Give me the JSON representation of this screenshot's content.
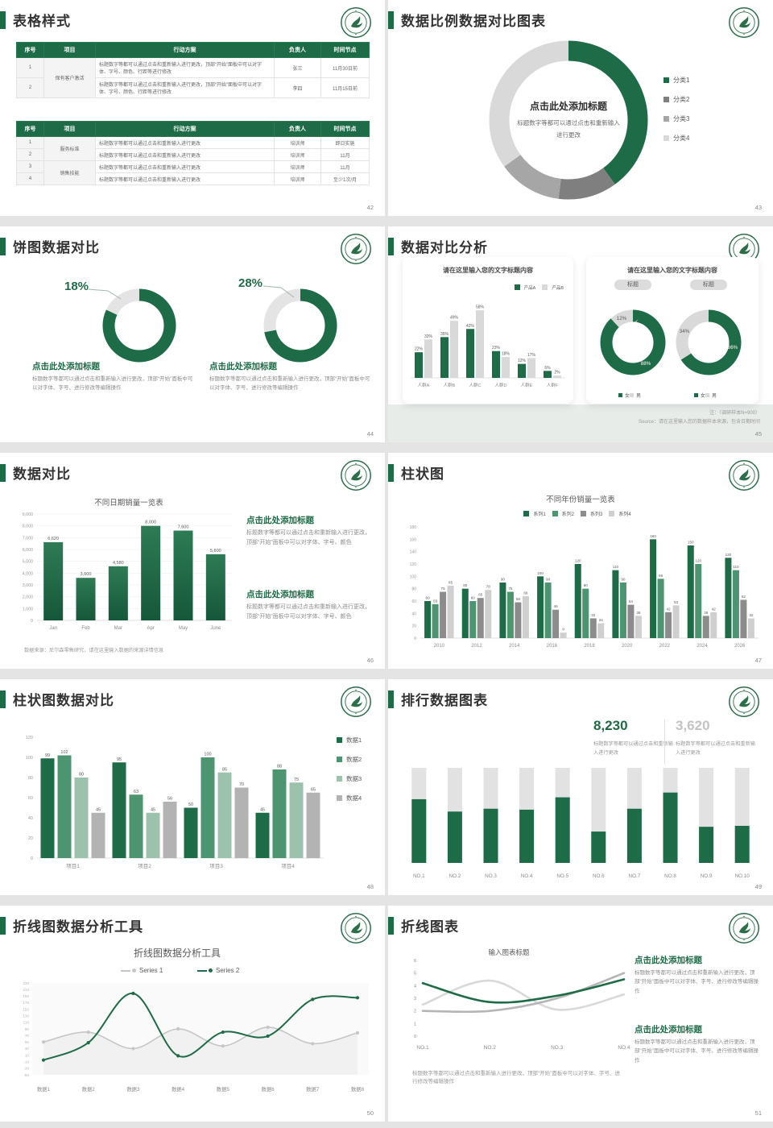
{
  "theme": {
    "green": "#1e6b47",
    "green2": "#4d9470",
    "green3": "#9cc2ae",
    "gray_dark": "#7f7f7f",
    "gray_mid": "#a6a6a6",
    "gray_light": "#d9d9d9",
    "track": "#e2e2e2"
  },
  "slides": [
    {
      "title": "表格样式",
      "page": "42",
      "table1": {
        "headers": [
          "序号",
          "项目",
          "行动方案",
          "负责人",
          "时间节点"
        ],
        "rows": [
          {
            "no": "1",
            "project": "保有客户激活",
            "span": 2,
            "plan": "标题数字等都可以通过点击和重新输入进行更改，顶部“开始”面板中可以对字体、字号、颜色、行距等进行修改",
            "owner": "张三",
            "time": "11月30日前"
          },
          {
            "no": "2",
            "plan": "标题数字等都可以通过点击和重新输入进行更改，顶部“开始”面板中可以对字体、字号、颜色、行距等进行修改",
            "owner": "李四",
            "time": "11月15日前"
          }
        ]
      },
      "table2": {
        "headers": [
          "序号",
          "项目",
          "行动方案",
          "负责人",
          "时间节点"
        ],
        "rows": [
          {
            "no": "1",
            "project": "服务标准",
            "span": 2,
            "plan": "标题数字等都可以通过点击和重新输入进行更改",
            "owner": "培训师",
            "time": "即日实施"
          },
          {
            "no": "2",
            "plan": "标题数字等都可以通过点击和重新输入进行更改",
            "owner": "培训师",
            "time": "11月"
          },
          {
            "no": "3",
            "project": "销售技能",
            "span": 2,
            "plan": "标题数字等都可以通过点击和重新输入进行更改",
            "owner": "培训师",
            "time": "11月"
          },
          {
            "no": "4",
            "plan": "标题数字等都可以通过点击和重新输入进行更改",
            "owner": "培训师",
            "time": "至少1次/月"
          }
        ]
      }
    },
    {
      "title": "数据比例数据对比图表",
      "page": "43",
      "center_title": "点击此处添加标题",
      "center_sub": "标题数字等都可以通过点击和重新输入进行更改",
      "legend_items": [
        {
          "label": "分类1",
          "color": "#1e6b47"
        },
        {
          "label": "分类2",
          "color": "#7f7f7f"
        },
        {
          "label": "分类3",
          "color": "#a6a6a6"
        },
        {
          "label": "分类4",
          "color": "#d9d9d9"
        }
      ]
    },
    {
      "title": "饼图数据对比",
      "page": "44",
      "items": [
        {
          "pct": "18%",
          "heading": "点击此处添加标题",
          "body": "标题数字等都可以通过点击和重新输入进行更改，顶部“开始”面板中可以对字体、字号、进行修改等编辑操作"
        },
        {
          "pct": "28%",
          "heading": "点击此处添加标题",
          "body": "标题数字等都可以通过点击和重新输入进行更改，顶部“开始”面板中可以对字体、字号、进行修改等编辑操作"
        }
      ]
    },
    {
      "title": "数据对比分析",
      "page": "45",
      "card1_title": "请在这里输入您的文字标题内容",
      "card2_title": "请在这里输入您的文字标题内容",
      "legend1_items": [
        {
          "label": "产品A",
          "color": "#1e6b47"
        },
        {
          "label": "产品B",
          "color": "#d9d9d9"
        }
      ],
      "pill1": "标题",
      "pill2": "标题",
      "legend2_items": [
        {
          "label": "女",
          "color": "#1e6b47"
        },
        {
          "label": "男",
          "color": "#d9d9d9"
        }
      ],
      "note1": "注：（调研样本N=900）",
      "note2": "Source：请在这里输入您的数据样本来源，包含日期时间"
    },
    {
      "title": "数据对比",
      "page": "46",
      "chart_title": "不同日期销量一览表",
      "caption": "数据来源：尼尔森零售研究，请在这里输入数据的来源详情信息",
      "blocks": [
        {
          "heading": "点击此处添加标题",
          "body": "标题数字等都可以通过点击和重新输入进行更改，顶部“开始”面板中可以对字体、字号、颜色"
        },
        {
          "heading": "点击此处添加标题",
          "body": "标题数字等都可以通过点击和重新输入进行更改，顶部“开始”面板中可以对字体、字号、颜色"
        }
      ]
    },
    {
      "title": "柱状图",
      "page": "47",
      "chart_title": "不同年份销量一览表",
      "legend_items": [
        {
          "label": "系列1",
          "color": "#1e6b47"
        },
        {
          "label": "系列2",
          "color": "#4d9470"
        },
        {
          "label": "系列3",
          "color": "#8c8c8c"
        },
        {
          "label": "系列4",
          "color": "#cfcfcf"
        }
      ]
    },
    {
      "title": "柱状图数据对比",
      "page": "48",
      "legend_items": [
        {
          "label": "数据1",
          "color": "#1e6b47"
        },
        {
          "label": "数据2",
          "color": "#4d9470"
        },
        {
          "label": "数据3",
          "color": "#9cc2ae"
        },
        {
          "label": "数据4",
          "color": "#b3b3b3"
        }
      ]
    },
    {
      "title": "排行数据图表",
      "page": "49",
      "stats": [
        {
          "value": "8,230",
          "text": "标题数字等都可以通过点击和重新输入进行更改",
          "color": "#1e6b47"
        },
        {
          "value": "3,620",
          "text": "标题数字等都可以通过点击和重新输入进行更改",
          "color": "#c3c3c3"
        }
      ]
    },
    {
      "title": "折线图数据分析工具",
      "page": "50",
      "chart_title": "折线图数据分析工具",
      "legend_series1": "Series 1",
      "legend_series2": "Series 2"
    },
    {
      "title": "折线图表",
      "page": "51",
      "chart_title": "输入图表标题",
      "caption": "标题数字等都可以通过点击和重新输入进行更改，顶部“开始”面板中可以对字体、字号、进行修改等编辑操作",
      "blocks": [
        {
          "heading": "点击此处添加标题",
          "body": "标题数字等都可以通过点击和重新输入进行更改，顶部“开始”面板中可以对字体、字号、进行修改等编辑操作"
        },
        {
          "heading": "点击此处添加标题",
          "body": "标题数字等都可以通过点击和重新输入进行更改，顶部“开始”面板中可以对字体、字号、进行修改等编辑操作"
        }
      ]
    }
  ],
  "chart_data": [
    {
      "type": "pie",
      "slide": 43,
      "title": "数据比例数据对比图表",
      "segments": [
        {
          "label": "分类1",
          "value": 40,
          "color": "#1e6b47"
        },
        {
          "label": "分类2",
          "value": 12,
          "color": "#7f7f7f"
        },
        {
          "label": "分类3",
          "value": 13,
          "color": "#a6a6a6"
        },
        {
          "label": "分类4",
          "value": 35,
          "color": "#d9d9d9"
        }
      ]
    },
    {
      "type": "bar",
      "slide": 45,
      "title": "请在这里输入您的文字标题内容",
      "categories": [
        "人群A",
        "人群B",
        "人群C",
        "人群D",
        "人群E",
        "人群F"
      ],
      "series": [
        {
          "name": "产品A",
          "color": "#1e6b47",
          "values": [
            22,
            35,
            42,
            23,
            12,
            6
          ]
        },
        {
          "name": "产品B",
          "color": "#d9d9d9",
          "values": [
            33,
            49,
            58,
            18,
            17,
            2
          ]
        }
      ],
      "unit": "%",
      "ylim": [
        0,
        65
      ],
      "legend_position": "top-right",
      "grid": false
    },
    {
      "type": "pie",
      "slide": 45,
      "subtype": "donut-pair",
      "legend": [
        "女",
        "男"
      ],
      "donuts": [
        {
          "green": 88,
          "gray": 12,
          "green_label": "88%",
          "gray_label": "12%"
        },
        {
          "green": 66,
          "gray": 34,
          "green_label": "66%",
          "gray_label": "34%"
        }
      ]
    },
    {
      "type": "bar",
      "slide": 46,
      "title": "不同日期销量一览表",
      "categories": [
        "Jan",
        "Feb",
        "Mar",
        "Apr",
        "May",
        "June"
      ],
      "values": [
        6620,
        3600,
        4580,
        8000,
        7600,
        5600
      ],
      "labels": [
        "6,620",
        "3,600",
        "4,580",
        "8,000",
        "7,600",
        "5,600"
      ],
      "ylim": [
        0,
        9000
      ],
      "ystep": 1000,
      "yticks": [
        "9,000",
        "8,000",
        "7,000",
        "6,000",
        "5,000",
        "4,000",
        "3,000",
        "2,000",
        "1,000",
        "0"
      ],
      "grid": true
    },
    {
      "type": "bar",
      "slide": 47,
      "title": "不同年份销量一览表",
      "categories": [
        "2010",
        "2012",
        "2014",
        "2016",
        "2018",
        "2020",
        "2022",
        "2024",
        "2026"
      ],
      "series": [
        {
          "name": "系列1",
          "color": "#1e6b47",
          "values": [
            60,
            80,
            90,
            100,
            120,
            110,
            160,
            150,
            130
          ]
        },
        {
          "name": "系列2",
          "color": "#4d9470",
          "values": [
            55,
            60,
            75,
            90,
            80,
            90,
            96,
            120,
            110
          ]
        },
        {
          "name": "系列3",
          "color": "#8c8c8c",
          "values": [
            75,
            65,
            58,
            46,
            32,
            54,
            42,
            36,
            62
          ]
        },
        {
          "name": "系列4",
          "color": "#cfcfcf",
          "values": [
            85,
            78,
            68,
            9,
            24,
            36,
            53,
            42,
            32
          ]
        }
      ],
      "ylim": [
        0,
        180
      ],
      "ystep": 20,
      "legend_position": "top-center",
      "grid": false
    },
    {
      "type": "bar",
      "slide": 48,
      "title": "柱状图数据对比",
      "categories": [
        "项目1",
        "项目2",
        "项目3",
        "项目4"
      ],
      "series": [
        {
          "name": "数据1",
          "color": "#1e6b47",
          "values": [
            99,
            95,
            50,
            45
          ]
        },
        {
          "name": "数据2",
          "color": "#4d9470",
          "values": [
            102,
            63,
            100,
            88
          ]
        },
        {
          "name": "数据3",
          "color": "#9cc2ae",
          "values": [
            80,
            45,
            85,
            75
          ]
        },
        {
          "name": "数据4",
          "color": "#b3b3b3",
          "values": [
            45,
            56,
            70,
            65
          ]
        }
      ],
      "ylim": [
        0,
        120
      ],
      "ystep": 20,
      "legend_position": "right",
      "grid": false
    },
    {
      "type": "bar",
      "slide": 49,
      "subtype": "rank-fill",
      "categories": [
        "NO.1",
        "NO.2",
        "NO.3",
        "NO.4",
        "NO.5",
        "NO.6",
        "NO.7",
        "NO.8",
        "NO.9",
        "NO.10"
      ],
      "fill_percent": [
        67,
        54,
        57,
        56,
        69,
        33,
        57,
        74,
        38,
        39
      ],
      "fill_color": "#1e6b47",
      "track_color": "#e2e2e2"
    },
    {
      "type": "line",
      "slide": 50,
      "title": "折线图数据分析工具",
      "x": [
        "数据1",
        "数据2",
        "数据3",
        "数据4",
        "数据5",
        "数据6",
        "数据7",
        "数据8"
      ],
      "series": [
        {
          "name": "Series 1",
          "color": "#c6c6c6",
          "values": [
            50,
            80,
            30,
            90,
            38,
            95,
            45,
            78
          ]
        },
        {
          "name": "Series 2",
          "color": "#1e6b47",
          "values": [
            -5,
            48,
            198,
            8,
            80,
            68,
            180,
            185
          ]
        }
      ],
      "ylim": [
        -50,
        230
      ],
      "ystep": 20,
      "markers": true,
      "smooth": true
    },
    {
      "type": "line",
      "slide": 51,
      "title": "输入图表标题",
      "x": [
        "NO.1",
        "NO.2",
        "NO.3",
        "NO.4"
      ],
      "series": [
        {
          "color": "#1e6b47",
          "values": [
            4.2,
            2.7,
            3.2,
            4.5
          ]
        },
        {
          "color": "#b5b5b5",
          "values": [
            2,
            2,
            3,
            5
          ]
        },
        {
          "color": "#d9d9d9",
          "values": [
            2.5,
            4.4,
            2.1,
            3.3
          ]
        }
      ],
      "ylim": [
        0,
        6
      ],
      "ystep": 1,
      "markers": false,
      "smooth": true
    },
    {
      "type": "pie",
      "slide": 44,
      "subtype": "pct-highlight",
      "gray_pct": 18,
      "green_pct": 82,
      "label": "18%"
    },
    {
      "type": "pie",
      "slide": 44,
      "subtype": "pct-highlight",
      "gray_pct": 28,
      "green_pct": 72,
      "label": "28%"
    }
  ]
}
